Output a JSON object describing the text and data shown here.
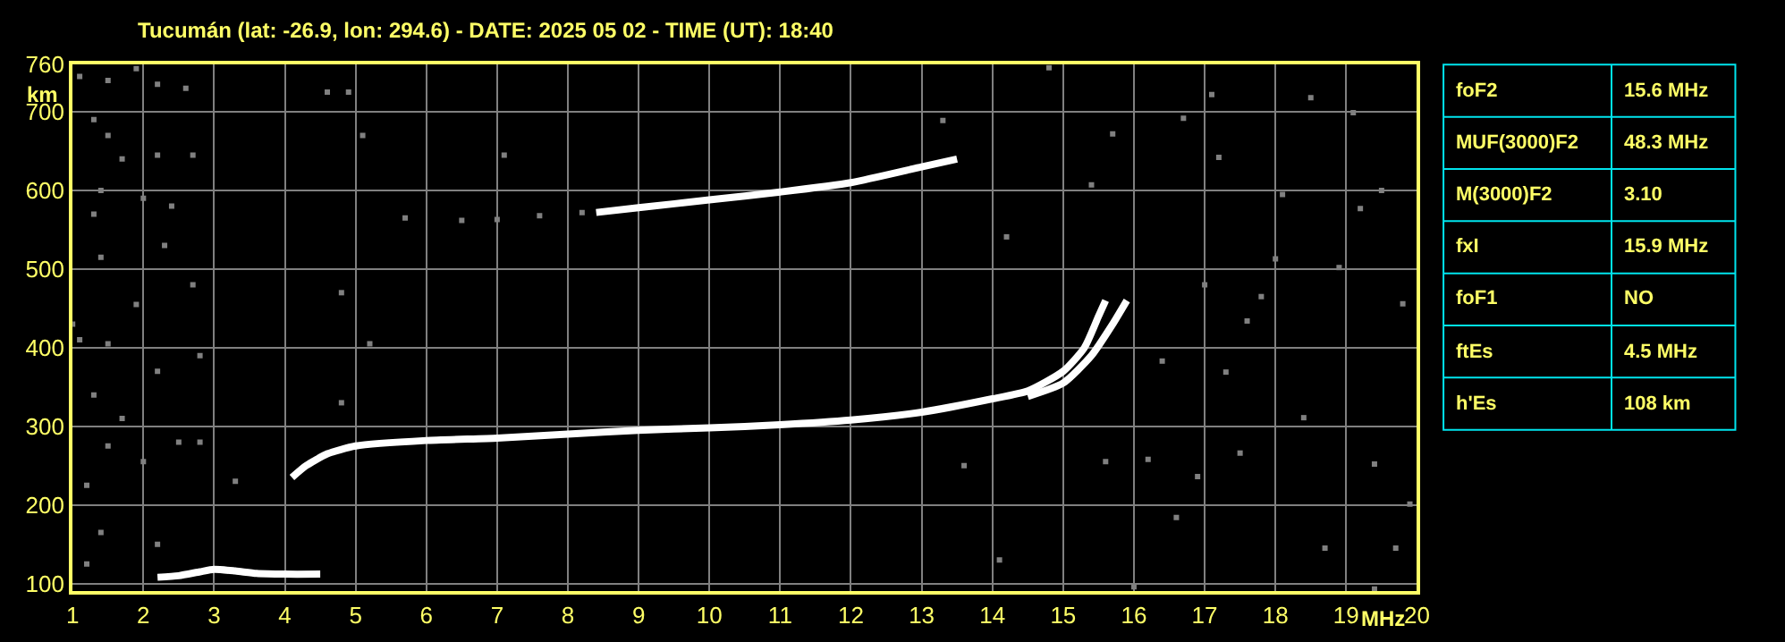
{
  "chart_data": [
    {
      "type": "line",
      "title": "Tucumán (lat: -26.9, lon: 294.6) - DATE: 2025 05 02 - TIME (UT): 18:40",
      "xlabel": "MHz",
      "ylabel": "km",
      "xlim": [
        1,
        20
      ],
      "ylim": [
        90,
        760
      ],
      "xticks": [
        1,
        2,
        3,
        4,
        5,
        6,
        7,
        8,
        9,
        10,
        11,
        12,
        13,
        14,
        15,
        16,
        17,
        18,
        19,
        20
      ],
      "yticks": [
        100,
        200,
        300,
        400,
        500,
        600,
        700,
        760
      ],
      "grid": true,
      "line_style": "solid",
      "series": [
        {
          "color": "#ffffff",
          "marker": "none",
          "x": [
            2.2,
            2.5,
            2.8,
            3.0,
            3.3,
            3.6,
            4.0,
            4.5
          ],
          "values": [
            108,
            110,
            115,
            118,
            116,
            113,
            112,
            112
          ]
        },
        {
          "color": "#ffffff",
          "marker": "none",
          "x": [
            4.1,
            4.3,
            4.6,
            5,
            6,
            7,
            8,
            9,
            10,
            11,
            12,
            13,
            14,
            14.5,
            15,
            15.3,
            15.5,
            15.6
          ],
          "values": [
            235,
            250,
            265,
            275,
            282,
            285,
            290,
            295,
            298,
            302,
            308,
            318,
            335,
            345,
            370,
            400,
            440,
            460
          ]
        },
        {
          "color": "#ffffff",
          "marker": "none",
          "x": [
            14.5,
            15,
            15.4,
            15.7,
            15.9
          ],
          "values": [
            338,
            355,
            390,
            430,
            460
          ]
        },
        {
          "color": "#ffffff",
          "marker": "none",
          "x": [
            8.4,
            9,
            10,
            11,
            12,
            13,
            13.5
          ],
          "values": [
            572,
            578,
            588,
            598,
            610,
            630,
            640
          ]
        },
        {
          "type": "scatter",
          "color": "#808080",
          "marker": "square",
          "x": [
            5.7,
            6.5,
            7,
            7.6,
            8.2
          ],
          "values": [
            565,
            562,
            563,
            568,
            572
          ]
        },
        {
          "type": "scatter",
          "color": "#808080",
          "marker": "square",
          "x": [
            1.1,
            1.5,
            1.9,
            2.2,
            2.6,
            1.3,
            1.5,
            1.7,
            2.2,
            2.7,
            1.4,
            2.4,
            1.3,
            2.0,
            1.4,
            2.3,
            1.0,
            1.1,
            1.5,
            1.9,
            2.7,
            1.3,
            1.7,
            2.2,
            2.8,
            1.5,
            2.5,
            2.8,
            1.2,
            2.0,
            1.4,
            1.2,
            2.2,
            3.3,
            4.8,
            4.8,
            5.1,
            4.9,
            5.2,
            7.1,
            4.6,
            14.8,
            16.7,
            17.1,
            17.2,
            18.1,
            18.0,
            19.1,
            19.5,
            19.2,
            17.3,
            16.6,
            19.9,
            18.5,
            17.8,
            16.4,
            16.2,
            16.9,
            17.5,
            18.4,
            19.4,
            19.8,
            15.6,
            16.0,
            19.4,
            14.1,
            13.6,
            13.3,
            15.7,
            15.4,
            14.2,
            17.0,
            17.6,
            18.9,
            19.7,
            18.7
          ],
          "values": [
            745,
            740,
            755,
            735,
            730,
            690,
            670,
            640,
            645,
            645,
            600,
            580,
            570,
            590,
            515,
            530,
            430,
            410,
            405,
            455,
            480,
            340,
            310,
            370,
            390,
            275,
            280,
            280,
            225,
            255,
            165,
            125,
            150,
            230,
            330,
            470,
            670,
            725,
            405,
            645,
            725,
            756,
            692,
            722,
            642,
            595,
            513,
            699,
            600,
            577,
            369,
            184,
            201,
            718,
            465,
            383,
            258,
            236,
            266,
            311,
            252,
            456,
            255,
            96,
            93,
            130,
            250,
            689,
            672,
            607,
            541,
            480,
            434,
            502,
            145,
            145
          ]
        }
      ]
    },
    {
      "type": "other",
      "annotations": [
        "foF2",
        "15.6 MHz",
        "MUF(3000)F2",
        "48.3 MHz",
        "M(3000)F2",
        "3.10",
        "fxI",
        "15.9 MHz",
        "foF1",
        "NO",
        "ftEs",
        "4.5 MHz",
        "h'Es",
        "108 km"
      ]
    }
  ]
}
